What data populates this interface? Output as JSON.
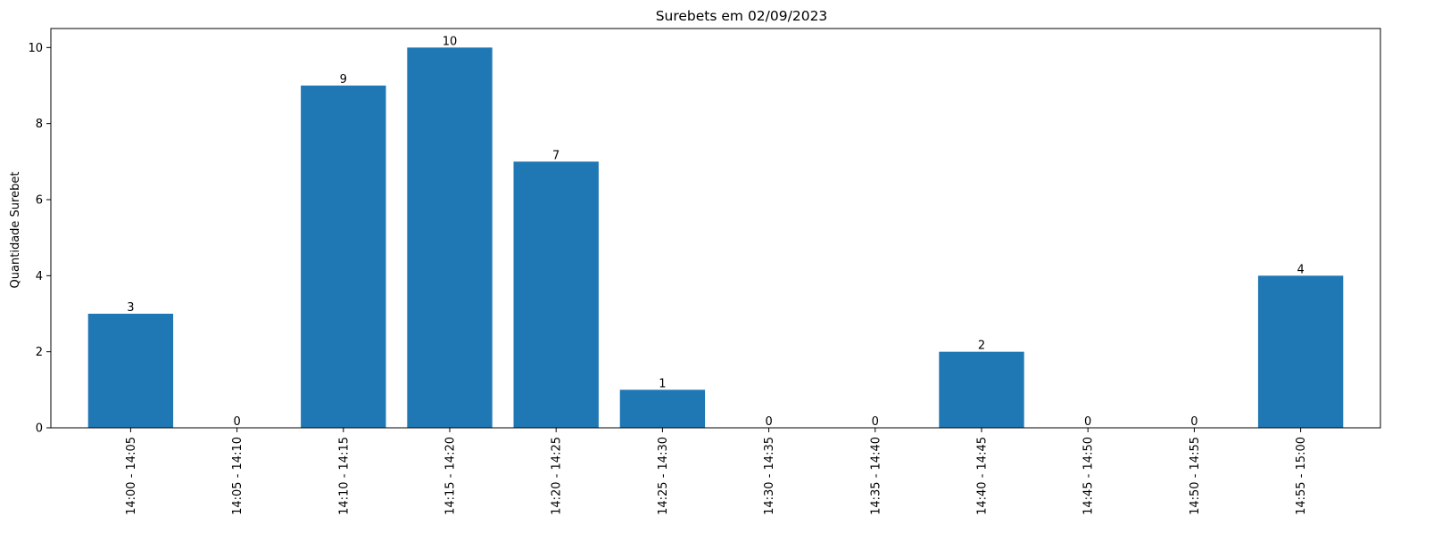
{
  "chart_data": {
    "type": "bar",
    "title": "Surebets em 02/09/2023",
    "xlabel": "",
    "ylabel": "Quantidade Surebet",
    "categories": [
      "14:00 - 14:05",
      "14:05 - 14:10",
      "14:10 - 14:15",
      "14:15 - 14:20",
      "14:20 - 14:25",
      "14:25 - 14:30",
      "14:30 - 14:35",
      "14:35 - 14:40",
      "14:40 - 14:45",
      "14:45 - 14:50",
      "14:50 - 14:55",
      "14:55 - 15:00"
    ],
    "values": [
      3,
      0,
      9,
      10,
      7,
      1,
      0,
      0,
      2,
      0,
      0,
      4
    ],
    "data_labels": [
      "3",
      "0",
      "9",
      "10",
      "7",
      "1",
      "0",
      "0",
      "2",
      "0",
      "0",
      "4"
    ],
    "ylim": [
      0,
      10.5
    ],
    "yticks": [
      0,
      2,
      4,
      6,
      8,
      10
    ],
    "ytick_labels": [
      "0",
      "2",
      "4",
      "6",
      "8",
      "10"
    ],
    "grid": false,
    "legend": "none",
    "bar_color": "#1f77b4",
    "axis_color": "#000000"
  }
}
